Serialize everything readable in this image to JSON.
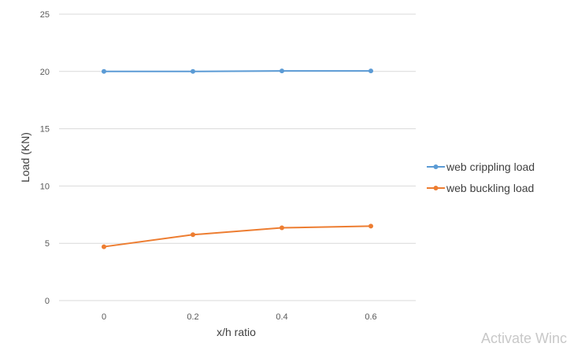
{
  "chart_data": {
    "type": "line",
    "title": "",
    "xlabel": "x/h ratio",
    "ylabel": "Load (KN)",
    "categories": [
      "0",
      "0.2",
      "0.4",
      "0.6"
    ],
    "x": [
      0,
      0.2,
      0.4,
      0.6
    ],
    "ylim": [
      0,
      25
    ],
    "yticks": [
      "0",
      "5",
      "10",
      "15",
      "20",
      "25"
    ],
    "grid": true,
    "legend_position": "right",
    "series": [
      {
        "name": "web crippling load",
        "color": "#5b9bd5",
        "values": [
          20,
          20,
          20.05,
          20.05
        ]
      },
      {
        "name": "web buckling load",
        "color": "#ed7d31",
        "values": [
          4.7,
          5.75,
          6.35,
          6.5
        ]
      }
    ]
  },
  "watermark": "Activate Winc"
}
